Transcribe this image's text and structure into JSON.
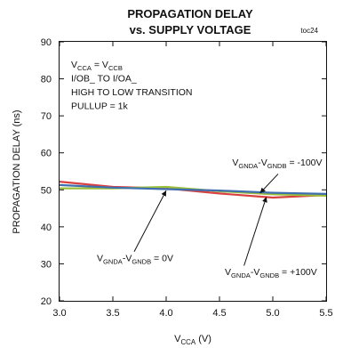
{
  "chart_data": {
    "type": "line",
    "title": "PROPAGATION DELAY",
    "subtitle": "vs. SUPPLY VOLTAGE",
    "figure_code": "toc24",
    "xlabel": {
      "main": "V",
      "sub": "CCA",
      "tail": " (V)"
    },
    "ylabel": "PROPAGATION DELAY (ns)",
    "xlim": [
      3.0,
      5.5
    ],
    "ylim": [
      20,
      90
    ],
    "x_ticks": [
      "3.0",
      "3.5",
      "4.0",
      "4.5",
      "5.0",
      "5.5"
    ],
    "y_ticks": [
      "20",
      "30",
      "40",
      "50",
      "60",
      "70",
      "80",
      "90"
    ],
    "grid": false,
    "conditions": [
      [
        {
          "t": "V"
        },
        {
          "t": "CCA",
          "sub": true
        },
        {
          "t": " = V"
        },
        {
          "t": "CCB",
          "sub": true
        }
      ],
      [
        {
          "t": "I/OB_ TO I/OA_"
        }
      ],
      [
        {
          "t": "HIGH TO LOW TRANSITION"
        }
      ],
      [
        {
          "t": "PULLUP = 1k"
        }
      ]
    ],
    "annotations": [
      {
        "parts": [
          {
            "t": "V"
          },
          {
            "t": "GNDA",
            "sub": true
          },
          {
            "t": "-V"
          },
          {
            "t": "GNDB",
            "sub": true
          },
          {
            "t": " = -100V"
          }
        ],
        "label_at": [
          4.62,
          56.6
        ],
        "arrow_from": [
          5.05,
          54.3
        ],
        "arrow_to": [
          4.88,
          49.1
        ]
      },
      {
        "parts": [
          {
            "t": "V"
          },
          {
            "t": "GNDA",
            "sub": true
          },
          {
            "t": "-V"
          },
          {
            "t": "GNDB",
            "sub": true
          },
          {
            "t": " = 0V"
          }
        ],
        "label_at": [
          3.35,
          30.7
        ],
        "arrow_from": [
          3.7,
          33.3
        ],
        "arrow_to": [
          4.0,
          49.8
        ]
      },
      {
        "parts": [
          {
            "t": "V"
          },
          {
            "t": "GNDA",
            "sub": true
          },
          {
            "t": "-V"
          },
          {
            "t": "GNDB",
            "sub": true
          },
          {
            "t": " = +100V"
          }
        ],
        "label_at": [
          4.55,
          27.0
        ],
        "arrow_from": [
          4.73,
          29.5
        ],
        "arrow_to": [
          4.94,
          48.1
        ]
      }
    ],
    "series": [
      {
        "color": "#d94040",
        "x": [
          3.0,
          3.5,
          4.0,
          4.5,
          5.0,
          5.5
        ],
        "y": [
          52.2,
          50.8,
          50.4,
          49.0,
          47.9,
          48.6
        ]
      },
      {
        "color": "#9bbf3a",
        "x": [
          3.0,
          3.5,
          4.0,
          4.5,
          5.0,
          5.5
        ],
        "y": [
          50.4,
          50.4,
          50.8,
          49.6,
          48.8,
          48.4
        ]
      },
      {
        "color": "#3f6fb0",
        "x": [
          3.0,
          3.5,
          4.0,
          4.5,
          5.0,
          5.5
        ],
        "y": [
          51.3,
          50.6,
          50.2,
          49.8,
          49.2,
          48.9
        ]
      }
    ]
  }
}
